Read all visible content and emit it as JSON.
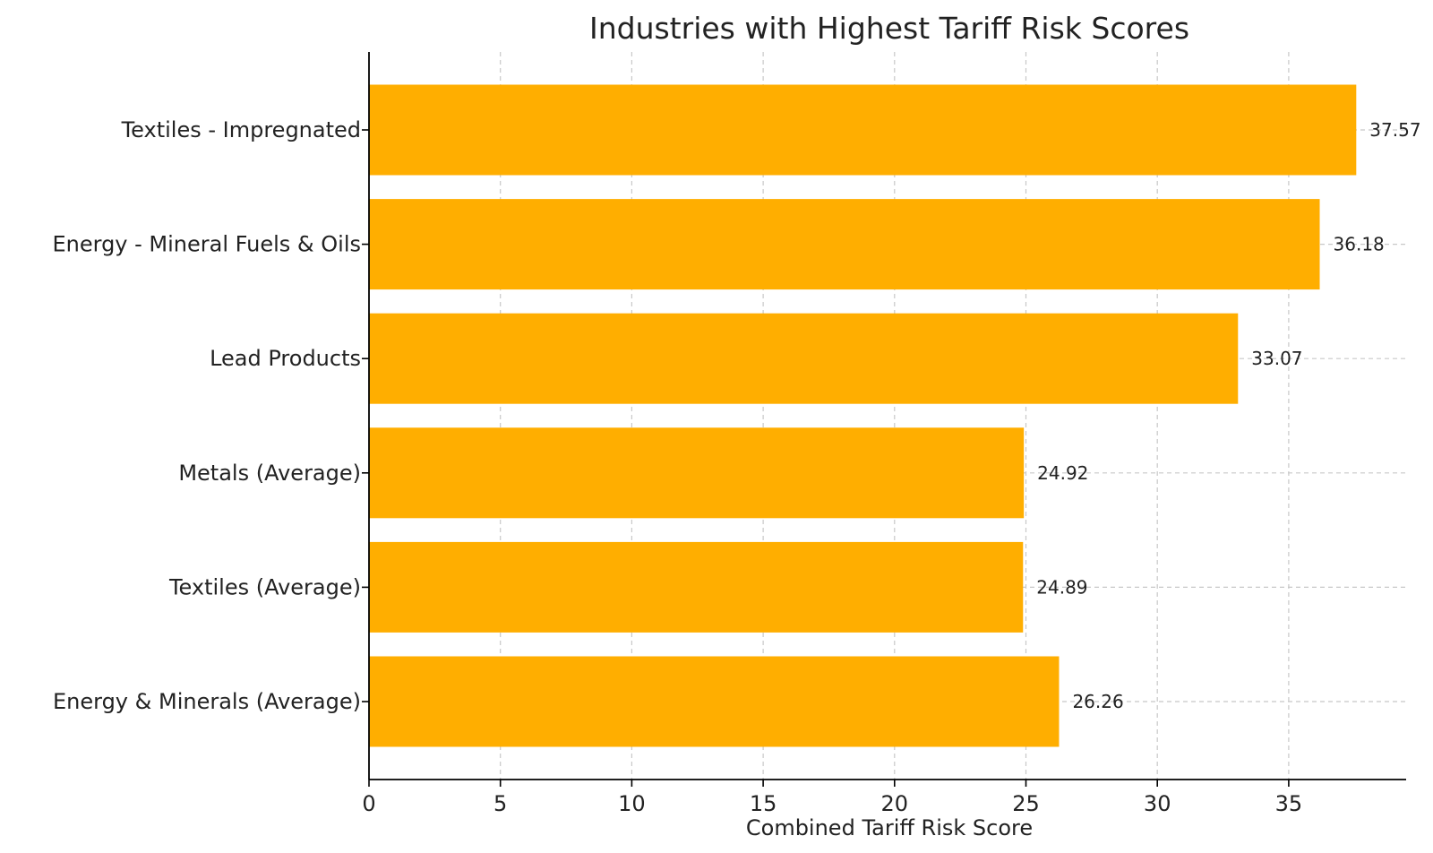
{
  "chart_data": {
    "type": "bar",
    "orientation": "horizontal",
    "title": "Industries with Highest Tariff Risk Scores",
    "xlabel": "Combined Tariff Risk Score",
    "ylabel": "",
    "xlim": [
      0,
      39.5
    ],
    "xticks": [
      0,
      5,
      10,
      15,
      20,
      25,
      30,
      35
    ],
    "grid": true,
    "bar_color": "#FFAE00",
    "categories": [
      "Textiles - Impregnated",
      "Energy - Mineral Fuels & Oils",
      "Lead Products",
      "Metals (Average)",
      "Textiles (Average)",
      "Energy & Minerals (Average)"
    ],
    "values": [
      37.57,
      36.18,
      33.07,
      24.92,
      24.89,
      26.26
    ],
    "data_labels": [
      "37.57",
      "36.18",
      "33.07",
      "24.92",
      "24.89",
      "26.26"
    ]
  }
}
